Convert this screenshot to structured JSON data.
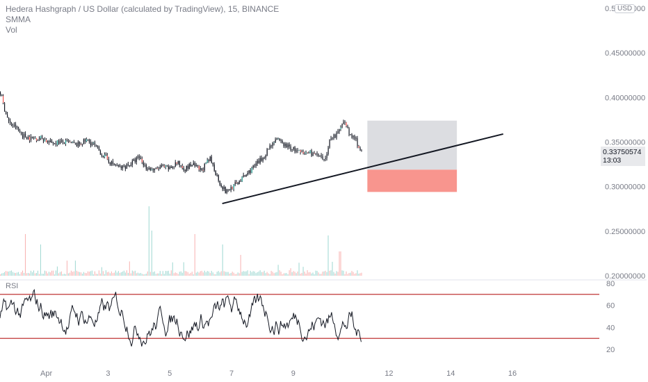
{
  "header": {
    "title": "Hedera Hashgraph / US Dollar (calculated by TradingView), 15, BINANCE",
    "indicator_1": "SMMA",
    "indicator_2": "Vol",
    "currency": "USD"
  },
  "price_tag": {
    "price": "0.33750574",
    "countdown": "13:03"
  },
  "rsi_panel": {
    "label": "RSI"
  },
  "chart_data": [
    {
      "type": "candlestick",
      "title": "Hedera Hashgraph / US Dollar (calculated by TradingView), 15, BINANCE",
      "y_ticks": [
        "0.50000000",
        "0.45000000",
        "0.40000000",
        "0.35000000",
        "0.30000000",
        "0.25000000",
        "0.20000000"
      ],
      "x_ticks": [
        "Apr",
        "3",
        "5",
        "7",
        "9",
        "12",
        "14",
        "16"
      ],
      "ylim": [
        0.2,
        0.5
      ],
      "last_price": 0.33750574,
      "price_path": [
        {
          "d": 0.0,
          "p": 0.405
        },
        {
          "d": 0.15,
          "p": 0.385
        },
        {
          "d": 0.3,
          "p": 0.37
        },
        {
          "d": 0.5,
          "p": 0.367
        },
        {
          "d": 0.7,
          "p": 0.358
        },
        {
          "d": 1.0,
          "p": 0.354
        },
        {
          "d": 1.3,
          "p": 0.355
        },
        {
          "d": 1.6,
          "p": 0.349
        },
        {
          "d": 1.9,
          "p": 0.35
        },
        {
          "d": 2.2,
          "p": 0.349
        },
        {
          "d": 2.5,
          "p": 0.347
        },
        {
          "d": 2.8,
          "p": 0.352
        },
        {
          "d": 3.0,
          "p": 0.348
        },
        {
          "d": 3.3,
          "p": 0.336
        },
        {
          "d": 3.6,
          "p": 0.326
        },
        {
          "d": 3.9,
          "p": 0.321
        },
        {
          "d": 4.2,
          "p": 0.325
        },
        {
          "d": 4.5,
          "p": 0.333
        },
        {
          "d": 4.7,
          "p": 0.322
        },
        {
          "d": 5.0,
          "p": 0.318
        },
        {
          "d": 5.2,
          "p": 0.322
        },
        {
          "d": 5.5,
          "p": 0.32
        },
        {
          "d": 5.7,
          "p": 0.327
        },
        {
          "d": 6.0,
          "p": 0.32
        },
        {
          "d": 6.2,
          "p": 0.325
        },
        {
          "d": 6.5,
          "p": 0.318
        },
        {
          "d": 6.8,
          "p": 0.331
        },
        {
          "d": 7.1,
          "p": 0.305
        },
        {
          "d": 7.3,
          "p": 0.294
        },
        {
          "d": 7.6,
          "p": 0.302
        },
        {
          "d": 7.9,
          "p": 0.311
        },
        {
          "d": 8.2,
          "p": 0.322
        },
        {
          "d": 8.5,
          "p": 0.332
        },
        {
          "d": 8.7,
          "p": 0.344
        },
        {
          "d": 8.9,
          "p": 0.353
        },
        {
          "d": 9.2,
          "p": 0.347
        },
        {
          "d": 9.5,
          "p": 0.342
        },
        {
          "d": 9.8,
          "p": 0.336
        },
        {
          "d": 10.0,
          "p": 0.339
        },
        {
          "d": 10.3,
          "p": 0.334
        },
        {
          "d": 10.5,
          "p": 0.328
        },
        {
          "d": 10.7,
          "p": 0.356
        },
        {
          "d": 10.9,
          "p": 0.358
        },
        {
          "d": 11.0,
          "p": 0.364
        },
        {
          "d": 11.1,
          "p": 0.377
        },
        {
          "d": 11.3,
          "p": 0.358
        },
        {
          "d": 11.5,
          "p": 0.354
        },
        {
          "d": 11.6,
          "p": 0.345
        },
        {
          "d": 11.7,
          "p": 0.3375
        }
      ],
      "volume_spikes": [
        {
          "d": 0.8,
          "v": 0.6
        },
        {
          "d": 1.3,
          "v": 0.45
        },
        {
          "d": 4.8,
          "v": 1.0
        },
        {
          "d": 4.9,
          "v": 0.65
        },
        {
          "d": 6.3,
          "v": 0.6
        },
        {
          "d": 7.2,
          "v": 0.45
        },
        {
          "d": 7.8,
          "v": 0.3
        },
        {
          "d": 10.6,
          "v": 0.58
        },
        {
          "d": 11.0,
          "v": 0.35
        }
      ],
      "trendline": {
        "from": {
          "d": 7.2,
          "p": 0.281
        },
        "to": {
          "d": 16.3,
          "p": 0.359
        }
      },
      "position_box": {
        "from_d": 11.9,
        "to_d": 14.8,
        "entry": 0.319,
        "target": 0.374,
        "stop": 0.294
      },
      "colors": {
        "up": "#26a69a",
        "down": "#ef5350",
        "line": "#131722",
        "target_fill": "#dcdde1",
        "stop_fill": "#f8958e"
      }
    },
    {
      "type": "line",
      "title": "RSI",
      "y_ticks": [
        "80",
        "60",
        "40",
        "20"
      ],
      "ylim": [
        15,
        85
      ],
      "levels": [
        70,
        30
      ],
      "level_color": "#b71c1c",
      "rsi_last": 30
    }
  ]
}
